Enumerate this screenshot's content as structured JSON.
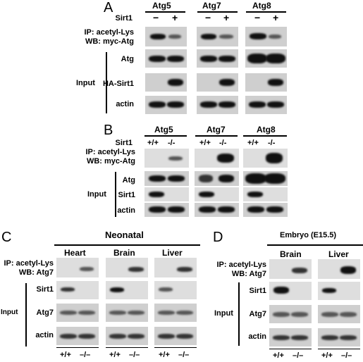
{
  "panelA": {
    "letter": "A",
    "groups": [
      "Atg5",
      "Atg7",
      "Atg8"
    ],
    "row_sirt1_label": "Sirt1",
    "signs": [
      "−",
      "+"
    ],
    "ip_label": "IP: acetyl-Lys",
    "wb_label": "WB: myc-Atg",
    "input_label": "Input",
    "rows": [
      "Atg",
      "HA-Sirt1",
      "actin"
    ]
  },
  "panelB": {
    "letter": "B",
    "groups": [
      "Atg5",
      "Atg7",
      "Atg8"
    ],
    "row_sirt1_label": "Sirt1",
    "genotypes": [
      "+/+",
      "-/-"
    ],
    "ip_label": "IP: acetyl-Lys",
    "wb_label": "WB: myc-Atg",
    "input_label": "Input",
    "rows": [
      "Atg",
      "Sirt1",
      "actin"
    ]
  },
  "panelC": {
    "letter": "C",
    "title": "Neonatal",
    "tissues": [
      "Heart",
      "Brain",
      "Liver"
    ],
    "ip_label": "IP: acetyl-Lys",
    "wb_label": "WB: Atg7",
    "input_label": "Input",
    "rows": [
      "Sirt1",
      "Atg7",
      "actin"
    ],
    "genotypes": [
      "+/+",
      "–/–"
    ]
  },
  "panelD": {
    "letter": "D",
    "title": "Embryo (E15.5)",
    "tissues": [
      "Brain",
      "Liver"
    ],
    "ip_label": "IP: acetyl-Lys",
    "wb_label": "WB: Atg7",
    "input_label": "Input",
    "rows": [
      "Sirt1",
      "Atg7",
      "actin"
    ],
    "genotypes": [
      "+/+",
      "–/–"
    ]
  }
}
